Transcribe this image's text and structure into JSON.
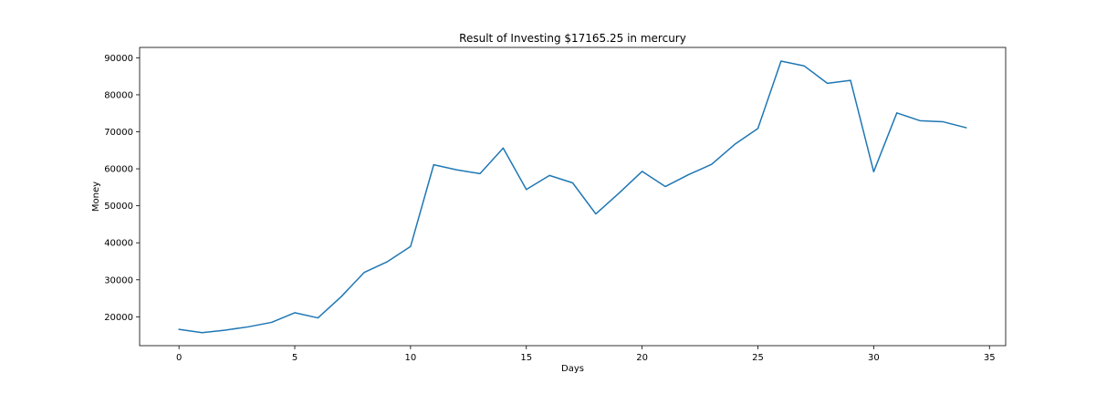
{
  "chart_data": {
    "type": "line",
    "title": "Result of Investing $17165.25 in mercury",
    "xlabel": "Days",
    "ylabel": "Money",
    "xlim": [
      -1.7,
      35.7
    ],
    "ylim": [
      12200,
      92800
    ],
    "xticks": [
      0,
      5,
      10,
      15,
      20,
      25,
      30,
      35
    ],
    "yticks": [
      20000,
      30000,
      40000,
      50000,
      60000,
      70000,
      80000,
      90000
    ],
    "grid": false,
    "legend": "none",
    "series": [
      {
        "color": "#1f77b4",
        "x": [
          0,
          1,
          2,
          3,
          4,
          5,
          6,
          7,
          8,
          9,
          10,
          11,
          12,
          13,
          14,
          15,
          16,
          17,
          18,
          19,
          20,
          21,
          22,
          23,
          24,
          25,
          26,
          27,
          28,
          29,
          30,
          31,
          32,
          33,
          34
        ],
        "y": [
          16600,
          15700,
          16400,
          17300,
          18500,
          21100,
          19700,
          25400,
          32000,
          34900,
          39000,
          61100,
          59700,
          58700,
          65600,
          54400,
          58200,
          56200,
          47800,
          53400,
          59300,
          55200,
          58400,
          61200,
          66600,
          70900,
          89100,
          87800,
          83100,
          83900,
          59200,
          75100,
          73000,
          72700,
          71100
        ]
      }
    ]
  }
}
